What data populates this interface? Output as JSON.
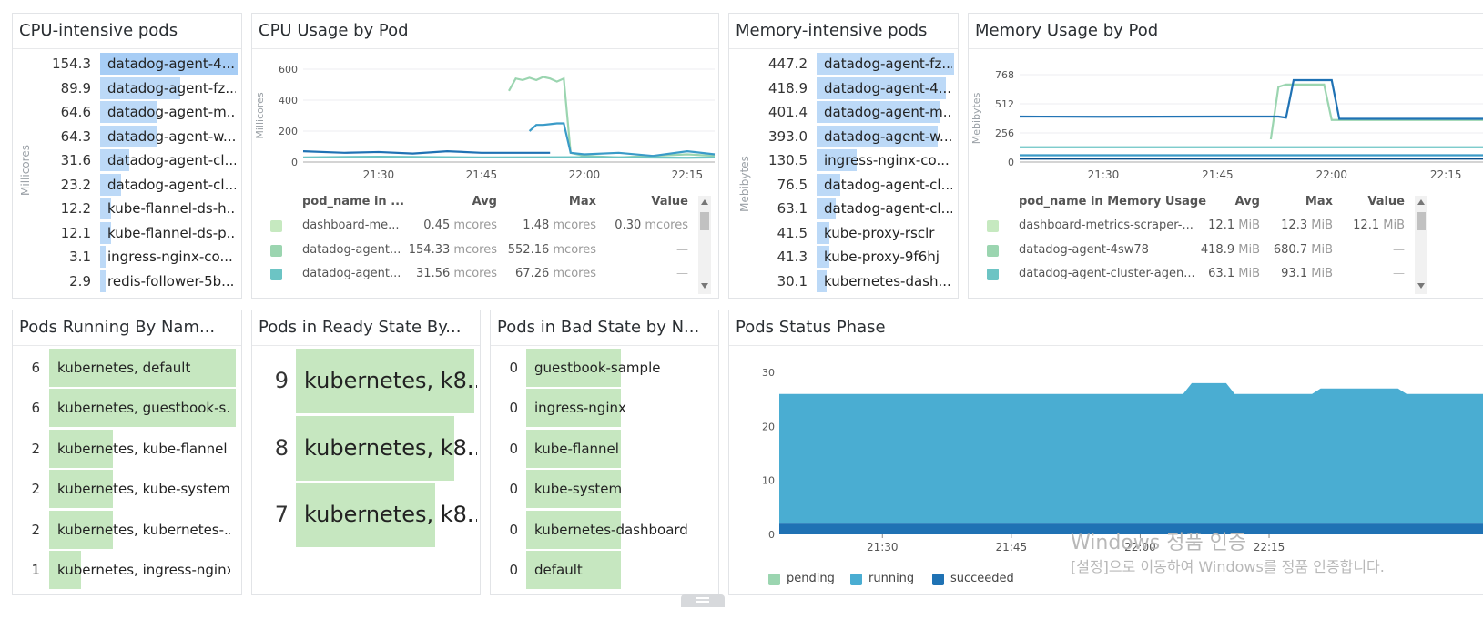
{
  "cpu_top": {
    "title": "CPU-intensive pods",
    "ylabel": "Millicores",
    "rows": [
      {
        "value": "154.3",
        "label": "datadog-agent-4...",
        "frac": 1.0,
        "hl": true
      },
      {
        "value": "89.9",
        "label": "datadog-agent-fz...",
        "frac": 0.58
      },
      {
        "value": "64.6",
        "label": "datadog-agent-m...",
        "frac": 0.42
      },
      {
        "value": "64.3",
        "label": "datadog-agent-w...",
        "frac": 0.42
      },
      {
        "value": "31.6",
        "label": "datadog-agent-cl...",
        "frac": 0.21
      },
      {
        "value": "23.2",
        "label": "datadog-agent-cl...",
        "frac": 0.15
      },
      {
        "value": "12.2",
        "label": "kube-flannel-ds-h...",
        "frac": 0.08
      },
      {
        "value": "12.1",
        "label": "kube-flannel-ds-p...",
        "frac": 0.08
      },
      {
        "value": "3.1",
        "label": "ingress-nginx-co...",
        "frac": 0.02
      },
      {
        "value": "2.9",
        "label": "redis-follower-5b...",
        "frac": 0.02
      }
    ]
  },
  "cpu_usage": {
    "title": "CPU Usage by Pod",
    "legend_headers": [
      "pod_name in ...",
      "Avg",
      "Max",
      "Value"
    ],
    "legend_rows": [
      {
        "name": "dashboard-me...",
        "avg": "0.45",
        "max": "1.48",
        "value": "0.30",
        "unit": "mcores",
        "color": "#c6e9c0"
      },
      {
        "name": "datadog-agent...",
        "avg": "154.33",
        "max": "552.16",
        "value": "—",
        "unit": "mcores",
        "color": "#9bd5b0"
      },
      {
        "name": "datadog-agent...",
        "avg": "31.56",
        "max": "67.26",
        "value": "—",
        "unit": "mcores",
        "color": "#6cc4c4"
      }
    ]
  },
  "mem_top": {
    "title": "Memory-intensive pods",
    "ylabel": "Mebibytes",
    "rows": [
      {
        "value": "447.2",
        "label": "datadog-agent-fz...",
        "frac": 1.0
      },
      {
        "value": "418.9",
        "label": "datadog-agent-4...",
        "frac": 0.94
      },
      {
        "value": "401.4",
        "label": "datadog-agent-m...",
        "frac": 0.9
      },
      {
        "value": "393.0",
        "label": "datadog-agent-w...",
        "frac": 0.88
      },
      {
        "value": "130.5",
        "label": "ingress-nginx-co...",
        "frac": 0.29
      },
      {
        "value": "76.5",
        "label": "datadog-agent-cl...",
        "frac": 0.17
      },
      {
        "value": "63.1",
        "label": "datadog-agent-cl...",
        "frac": 0.14
      },
      {
        "value": "41.5",
        "label": "kube-proxy-rsclr",
        "frac": 0.09
      },
      {
        "value": "41.3",
        "label": "kube-proxy-9f6hj",
        "frac": 0.09
      },
      {
        "value": "30.1",
        "label": "kubernetes-dash...",
        "frac": 0.07
      }
    ]
  },
  "mem_usage": {
    "title": "Memory Usage by Pod",
    "legend_headers": [
      "pod_name in Memory Usage",
      "Avg",
      "Max",
      "Value"
    ],
    "legend_rows": [
      {
        "name": "dashboard-metrics-scraper-...",
        "avg": "12.1",
        "max": "12.3",
        "value": "12.1",
        "unit": "MiB",
        "color": "#c6e9c0"
      },
      {
        "name": "datadog-agent-4sw78",
        "avg": "418.9",
        "max": "680.7",
        "value": "—",
        "unit": "MiB",
        "color": "#9bd5b0"
      },
      {
        "name": "datadog-agent-cluster-agen...",
        "avg": "63.1",
        "max": "93.1",
        "value": "—",
        "unit": "MiB",
        "color": "#6cc4c4"
      }
    ]
  },
  "pods_running": {
    "title": "Pods Running By Nam...",
    "rows": [
      {
        "value": "6",
        "label": "kubernetes, default",
        "frac": 1.0
      },
      {
        "value": "6",
        "label": "kubernetes, guestbook-s...",
        "frac": 1.0
      },
      {
        "value": "2",
        "label": "kubernetes, kube-flannel",
        "frac": 0.34
      },
      {
        "value": "2",
        "label": "kubernetes, kube-system",
        "frac": 0.34
      },
      {
        "value": "2",
        "label": "kubernetes, kubernetes-...",
        "frac": 0.34
      },
      {
        "value": "1",
        "label": "kubernetes, ingress-nginx",
        "frac": 0.17
      }
    ]
  },
  "pods_ready": {
    "title": "Pods in Ready State By...",
    "rows": [
      {
        "value": "9",
        "label": "kubernetes, k8...",
        "frac": 1.0
      },
      {
        "value": "8",
        "label": "kubernetes, k8...",
        "frac": 0.89
      },
      {
        "value": "7",
        "label": "kubernetes, k8...",
        "frac": 0.78
      }
    ]
  },
  "pods_bad": {
    "title": "Pods in Bad State by N...",
    "rows": [
      {
        "value": "0",
        "label": "guestbook-sample"
      },
      {
        "value": "0",
        "label": "ingress-nginx"
      },
      {
        "value": "0",
        "label": "kube-flannel"
      },
      {
        "value": "0",
        "label": "kube-system"
      },
      {
        "value": "0",
        "label": "kubernetes-dashboard"
      },
      {
        "value": "0",
        "label": "default"
      }
    ]
  },
  "pods_status": {
    "title": "Pods Status Phase",
    "legend": [
      {
        "name": "pending",
        "color": "#9bd5b0"
      },
      {
        "name": "running",
        "color": "#4aadd2"
      },
      {
        "name": "succeeded",
        "color": "#1f72b4"
      }
    ]
  },
  "chart_data": [
    {
      "type": "line",
      "title": "CPU Usage by Pod",
      "ylabel": "Millicores",
      "ylim": [
        0,
        600
      ],
      "yticks": [
        0,
        200,
        400,
        600
      ],
      "xticks": [
        "21:30",
        "21:45",
        "22:00",
        "22:15"
      ],
      "series": [
        {
          "name": "datadog-agent-4sw78",
          "color": "#9bd5b0",
          "x": [
            "21:49",
            "21:50",
            "21:51",
            "21:52",
            "21:53",
            "21:54",
            "21:55",
            "21:56",
            "21:57",
            "21:58",
            "21:59",
            "22:00",
            "22:05",
            "22:10",
            "22:15",
            "22:19"
          ],
          "y": [
            460,
            540,
            530,
            545,
            530,
            550,
            540,
            520,
            540,
            60,
            50,
            40,
            30,
            40,
            50,
            40
          ]
        },
        {
          "name": "datadog-agent-fz...",
          "color": "#1f72b4",
          "x": [
            "21:19",
            "21:25",
            "21:30",
            "21:35",
            "21:40",
            "21:45",
            "21:50",
            "21:55"
          ],
          "y": [
            70,
            60,
            65,
            55,
            70,
            60,
            60,
            60
          ]
        },
        {
          "name": "datadog-agent-m...",
          "color": "#3a9bc8",
          "x": [
            "21:52",
            "21:53",
            "21:54",
            "21:55",
            "21:56",
            "21:57",
            "21:58",
            "22:00",
            "22:05",
            "22:10",
            "22:15",
            "22:19"
          ],
          "y": [
            200,
            240,
            240,
            245,
            250,
            250,
            60,
            50,
            60,
            40,
            70,
            50
          ]
        },
        {
          "name": "datadog-agent-cl...",
          "color": "#6cc4c4",
          "x": [
            "21:19",
            "21:30",
            "21:45",
            "22:00",
            "22:15",
            "22:19"
          ],
          "y": [
            30,
            35,
            30,
            32,
            28,
            30
          ]
        }
      ]
    },
    {
      "type": "line",
      "title": "Memory Usage by Pod",
      "ylabel": "Mebibytes",
      "ylim": [
        0,
        768
      ],
      "yticks": [
        0,
        256,
        512,
        768
      ],
      "xticks": [
        "21:30",
        "21:45",
        "22:00",
        "22:15"
      ],
      "series": [
        {
          "name": "datadog-agent-4sw78",
          "color": "#9bd5b0",
          "x": [
            "21:52",
            "21:53",
            "21:54",
            "21:59",
            "22:00",
            "22:20"
          ],
          "y": [
            200,
            660,
            681,
            681,
            370,
            370
          ]
        },
        {
          "name": "datadog-agent-m...",
          "color": "#1f72b4",
          "x": [
            "21:19",
            "21:30",
            "21:45",
            "21:53",
            "21:54",
            "21:55",
            "22:00",
            "22:01",
            "22:20"
          ],
          "y": [
            400,
            398,
            400,
            400,
            390,
            720,
            720,
            380,
            380
          ]
        },
        {
          "name": "ingress-nginx-co...",
          "color": "#6cc4c4",
          "x": [
            "21:19",
            "22:20"
          ],
          "y": [
            130,
            130
          ]
        },
        {
          "name": "datadog-agent-cluster-agen...",
          "color": "#3a9bc8",
          "x": [
            "21:19",
            "22:20"
          ],
          "y": [
            60,
            60
          ]
        },
        {
          "name": "kube-proxy",
          "color": "#0b4e8a",
          "x": [
            "21:19",
            "22:20"
          ],
          "y": [
            30,
            30
          ]
        }
      ]
    },
    {
      "type": "area",
      "title": "Pods Status Phase",
      "ylim": [
        0,
        30
      ],
      "yticks": [
        0,
        10,
        20,
        30
      ],
      "xticks": [
        "21:30",
        "21:45",
        "22:00",
        "22:15"
      ],
      "x": [
        "21:18",
        "22:05",
        "22:06",
        "22:10",
        "22:11",
        "22:20",
        "22:21",
        "22:30",
        "22:31",
        "22:40"
      ],
      "series": [
        {
          "name": "succeeded",
          "color": "#1f72b4",
          "values": [
            2,
            2,
            2,
            2,
            2,
            2,
            2,
            2,
            2,
            2
          ]
        },
        {
          "name": "running",
          "color": "#4aadd2",
          "values": [
            24,
            24,
            26,
            26,
            24,
            24,
            25,
            25,
            24,
            24
          ]
        },
        {
          "name": "pending",
          "color": "#9bd5b0",
          "values": [
            0,
            0,
            0,
            0,
            0,
            0,
            0,
            0,
            0,
            0
          ]
        }
      ]
    }
  ],
  "watermark": {
    "line1": "Windows 정품 인증",
    "line2": "[설정]으로 이동하여 Windows를 정품 인증합니다."
  }
}
